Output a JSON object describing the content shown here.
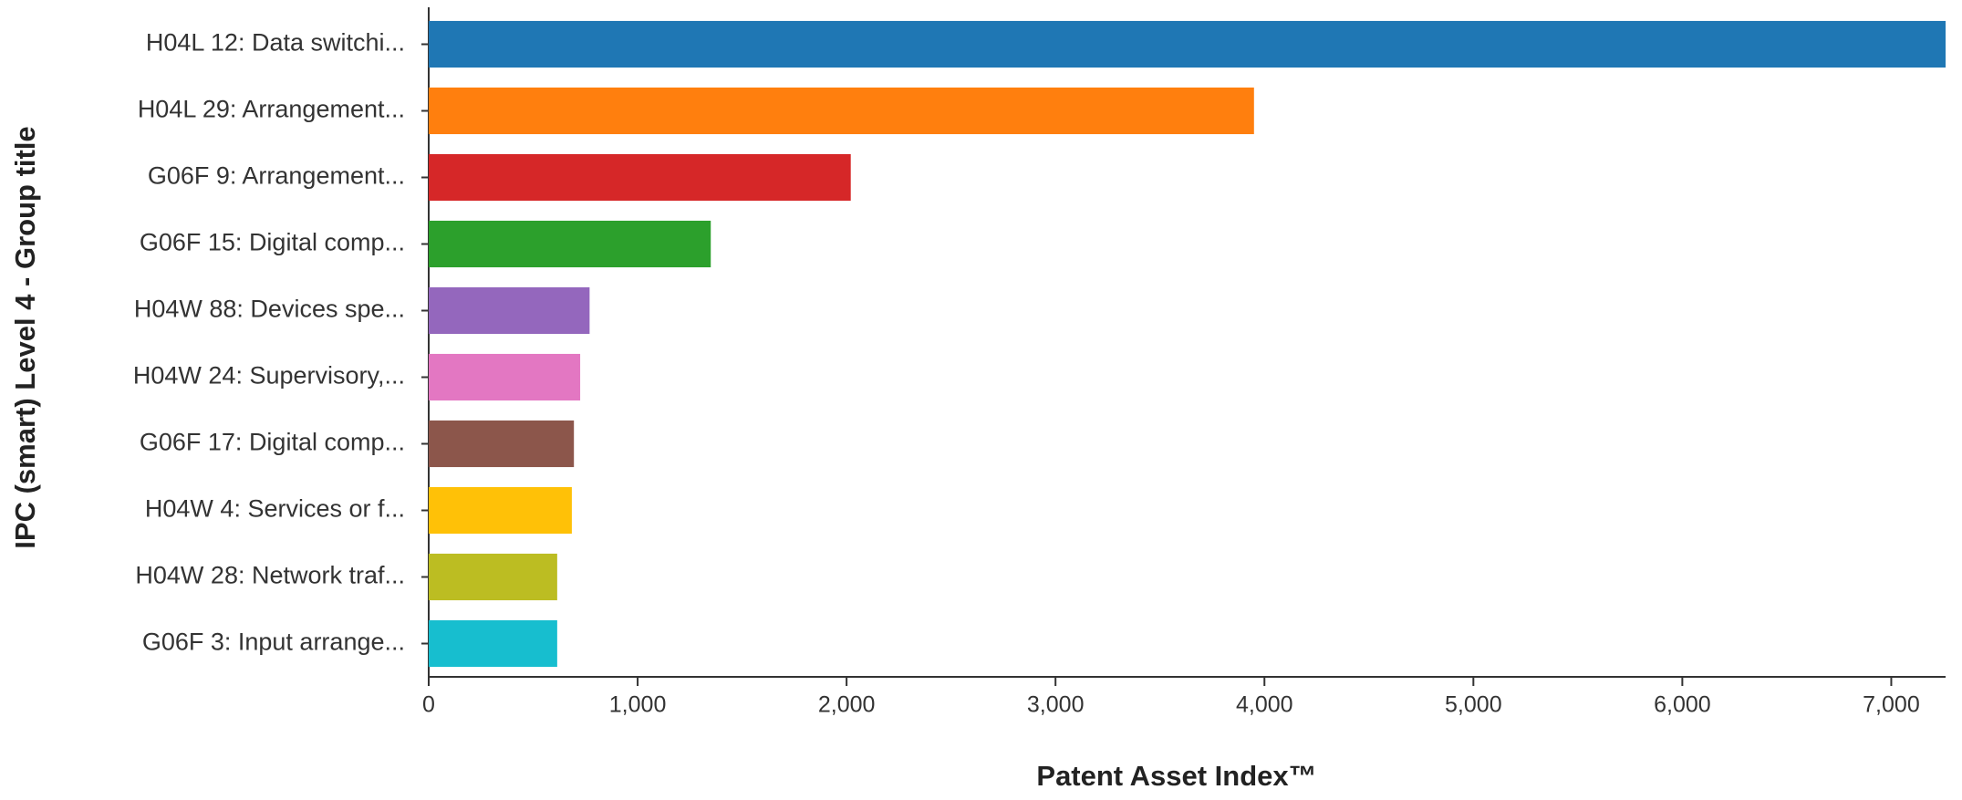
{
  "chart_data": {
    "type": "barh",
    "xlabel": "Patent Asset Index™",
    "ylabel": "IPC (smart) Level 4 - Group title",
    "categories": [
      "H04L 12: Data switchi...",
      "H04L 29: Arrangement...",
      "G06F 9: Arrangement...",
      "G06F 15: Digital comp...",
      "H04W 88: Devices spe...",
      "H04W 24: Supervisory,...",
      "G06F 17: Digital comp...",
      "H04W 4: Services or f...",
      "H04W 28: Network traf...",
      "G06F 3: Input arrange..."
    ],
    "values": [
      7260,
      3950,
      2020,
      1350,
      770,
      725,
      695,
      685,
      615,
      615
    ],
    "colors": [
      "#1f77b4",
      "#ff7f0e",
      "#d62728",
      "#2ca02c",
      "#9467bd",
      "#e377c2",
      "#8c564b",
      "#ffc107",
      "#bcbd22",
      "#17becf"
    ],
    "xlim": [
      0,
      7260
    ],
    "xticks": [
      0,
      {
        "value": 1000,
        "label": "1,000"
      },
      {
        "value": 2000,
        "label": "2,000"
      },
      {
        "value": 3000,
        "label": "3,000"
      },
      {
        "value": 4000,
        "label": "4,000"
      },
      {
        "value": 5000,
        "label": "5,000"
      },
      {
        "value": 6000,
        "label": "6,000"
      },
      {
        "value": 7000,
        "label": "7,000"
      }
    ],
    "grid": false
  }
}
